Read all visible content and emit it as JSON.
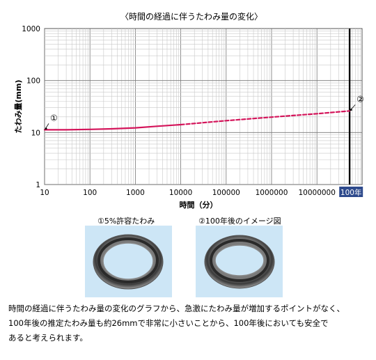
{
  "chart_data": {
    "type": "line",
    "title": "〈時間の経過に伴うたわみ量の変化〉",
    "xlabel": "時間（分）",
    "ylabel": "たわみ量(mm)",
    "x_scale": "log",
    "y_scale": "log",
    "xlim": [
      10,
      100000000
    ],
    "ylim": [
      1,
      1000
    ],
    "x_ticks": [
      "10",
      "100",
      "1000",
      "10000",
      "100000",
      "1000000",
      "10000000"
    ],
    "y_ticks": [
      "1",
      "10",
      "100",
      "1000"
    ],
    "grid": true,
    "series": [
      {
        "style": "solid",
        "color": "#d4145a",
        "points": [
          [
            10,
            11.3
          ],
          [
            30,
            11.3
          ],
          [
            100,
            11.5
          ],
          [
            300,
            11.8
          ],
          [
            1000,
            12.3
          ],
          [
            3000,
            13.2
          ],
          [
            10000,
            14.2
          ]
        ]
      },
      {
        "style": "dashed",
        "color": "#d4145a",
        "points": [
          [
            10000,
            14.2
          ],
          [
            100000,
            16.9
          ],
          [
            1000000,
            19.8
          ],
          [
            10000000,
            23.0
          ],
          [
            52560000,
            26
          ]
        ]
      }
    ],
    "marker_line": {
      "x": 52560000,
      "label": "100年",
      "label_color": "#2e4a8c"
    },
    "annotations": [
      {
        "label": "①",
        "x": 10,
        "y": 11.3
      },
      {
        "label": "②",
        "x": 52560000,
        "y": 26
      }
    ]
  },
  "images": {
    "left_caption": "①5%許容たわみ",
    "right_caption": "②100年後のイメージ図",
    "panel_color": "#cde6f6"
  },
  "description": [
    "時間の経過に伴うたわみ量の変化のグラフから、急激にたわみ量が増加するポイントがなく、",
    "100年後の推定たわみ量も約26mmで非常に小さいことから、100年後においても安全で",
    "あると考えられます。"
  ]
}
